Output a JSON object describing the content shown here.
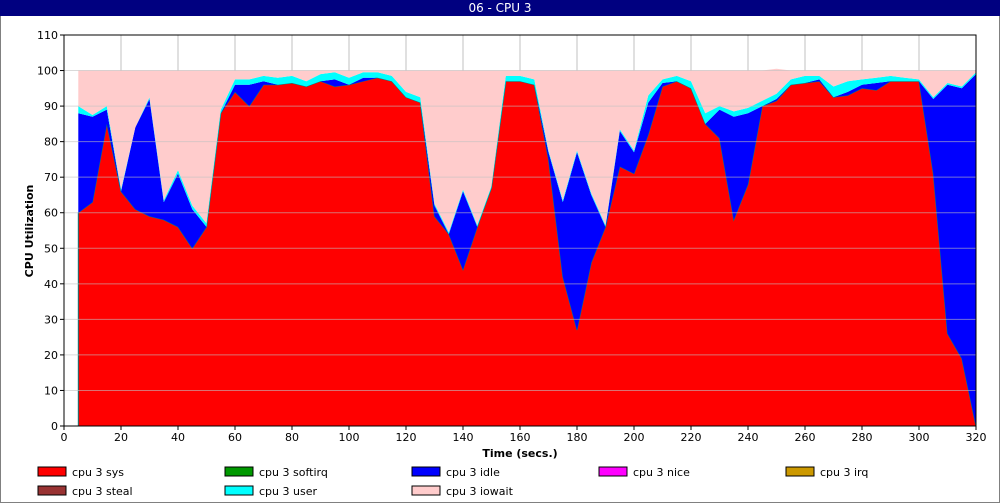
{
  "window": {
    "title": "06 - CPU 3"
  },
  "chart_data": {
    "type": "area",
    "title": "06 - CPU 3",
    "xlabel": "Time (secs.)",
    "ylabel": "CPU Utilization",
    "xlim": [
      0,
      320
    ],
    "ylim": [
      0,
      110
    ],
    "x_ticks": [
      0,
      20,
      40,
      60,
      80,
      100,
      120,
      140,
      160,
      180,
      200,
      220,
      240,
      260,
      280,
      300,
      320
    ],
    "y_ticks": [
      0,
      10,
      20,
      30,
      40,
      50,
      60,
      70,
      80,
      90,
      100,
      110
    ],
    "grid": true,
    "stacked": true,
    "x": [
      5,
      10,
      15,
      20,
      25,
      30,
      35,
      40,
      45,
      50,
      55,
      60,
      65,
      70,
      75,
      80,
      85,
      90,
      95,
      100,
      105,
      110,
      115,
      120,
      125,
      130,
      135,
      140,
      145,
      150,
      155,
      160,
      165,
      170,
      175,
      180,
      185,
      190,
      195,
      200,
      205,
      210,
      215,
      220,
      225,
      230,
      235,
      240,
      245,
      250,
      255,
      260,
      265,
      270,
      275,
      280,
      285,
      290,
      295,
      300,
      305,
      310,
      315,
      320
    ],
    "series": [
      {
        "name": "cpu 3 sys",
        "color": "#ff0000",
        "values": [
          60,
          63,
          85,
          66,
          61,
          59,
          58,
          56,
          50,
          56,
          88,
          94,
          90,
          96,
          96,
          96.5,
          95.5,
          97,
          95.5,
          96,
          97,
          98,
          97,
          92.5,
          91,
          59,
          54,
          44,
          56,
          67,
          97,
          97,
          96,
          75,
          42,
          27,
          46,
          56,
          73,
          71,
          82,
          95.5,
          97,
          95,
          85,
          81,
          58,
          68,
          90,
          91.5,
          96,
          96.5,
          97,
          92.5,
          93,
          95,
          94.5,
          97,
          97,
          97,
          71,
          26,
          19,
          0
        ]
      },
      {
        "name": "cpu 3 softirq",
        "color": "#009900",
        "values": [
          0,
          0,
          0,
          0,
          0,
          0,
          0,
          0,
          0,
          0,
          0,
          0,
          0,
          0,
          0,
          0,
          0,
          0,
          0,
          0,
          0,
          0,
          0,
          0,
          0,
          0,
          0,
          0,
          0,
          0,
          0,
          0,
          0,
          0,
          0,
          0,
          0,
          0,
          0,
          0,
          0,
          0,
          0,
          0,
          0,
          0,
          0,
          0,
          0,
          0,
          0,
          0,
          0,
          0,
          0,
          0,
          0,
          0,
          0,
          0,
          0,
          0,
          0,
          0
        ]
      },
      {
        "name": "cpu 3 idle",
        "color": "#0000ff",
        "values": [
          28,
          24,
          4,
          0,
          23,
          33,
          5,
          15,
          11,
          0,
          0,
          2,
          6,
          1,
          0,
          0,
          0,
          0,
          2,
          0,
          1,
          0,
          0,
          0,
          0,
          3,
          0,
          22,
          0,
          0,
          0,
          0,
          0,
          2,
          21,
          50,
          19,
          0,
          10,
          6,
          9,
          1,
          0,
          0,
          0,
          8,
          29,
          20,
          0,
          0.5,
          0,
          0,
          0.5,
          0,
          1,
          1,
          2,
          0,
          0,
          0,
          21,
          70,
          76,
          99
        ]
      },
      {
        "name": "cpu 3 nice",
        "color": "#ff00ff",
        "values": [
          0,
          0,
          0,
          0,
          0,
          0,
          0,
          0,
          0,
          0,
          0,
          0,
          0,
          0,
          0,
          0,
          0,
          0,
          0,
          0,
          0,
          0,
          0,
          0,
          0,
          0,
          0,
          0,
          0,
          0,
          0,
          0,
          0,
          0,
          0,
          0,
          0,
          0,
          0,
          0,
          0,
          0,
          0,
          0,
          0,
          0,
          0,
          0,
          0,
          0,
          0,
          0,
          0,
          0,
          0,
          0,
          0,
          0,
          0,
          0,
          0,
          0,
          0,
          0
        ]
      },
      {
        "name": "cpu 3 irq",
        "color": "#cc9900",
        "values": [
          0,
          0,
          0,
          0,
          0,
          0,
          0,
          0,
          0,
          0,
          0,
          0,
          0,
          0,
          0,
          0,
          0,
          0,
          0,
          0,
          0,
          0,
          0,
          0,
          0,
          0,
          0,
          0,
          0,
          0,
          0,
          0,
          0,
          0,
          0,
          0,
          0,
          0,
          0,
          0,
          0,
          0,
          0,
          0,
          0,
          0,
          0,
          0,
          0,
          0,
          0,
          0,
          0,
          0,
          0,
          0,
          0,
          0,
          0,
          0,
          0,
          0,
          0,
          0
        ]
      },
      {
        "name": "cpu 3 steal",
        "color": "#993333",
        "values": [
          0,
          0,
          0,
          0,
          0,
          0,
          0,
          0,
          0,
          0,
          0,
          0,
          0,
          0,
          0,
          0,
          0,
          0,
          0,
          0,
          0,
          0,
          0,
          0,
          0,
          0,
          0,
          0,
          0,
          0,
          0,
          0,
          0,
          0,
          0,
          0,
          0,
          0,
          0,
          0,
          0,
          0,
          0,
          0,
          0,
          0,
          0,
          0,
          0,
          0,
          0,
          0,
          0,
          0,
          0,
          0,
          0,
          0,
          0,
          0,
          0,
          0,
          0,
          0
        ]
      },
      {
        "name": "cpu 3 user",
        "color": "#00ffff",
        "values": [
          2,
          0.5,
          1,
          0.5,
          0,
          0.5,
          0.5,
          1,
          1,
          1,
          1,
          1.5,
          1.5,
          1.5,
          2,
          2,
          1.5,
          2,
          2,
          2,
          1.5,
          1.5,
          1.5,
          1.5,
          1.5,
          0.5,
          0.5,
          0.5,
          0.5,
          0.5,
          1.5,
          1.5,
          1.5,
          0.5,
          0.5,
          0.5,
          0.5,
          0.5,
          0.5,
          0.5,
          2,
          1,
          1.5,
          2,
          3,
          1,
          1.5,
          1.5,
          1.5,
          1.5,
          1.5,
          2,
          1,
          3,
          3,
          1.5,
          1.5,
          1.5,
          1,
          0.5,
          0.5,
          0.5,
          0.5,
          0.5
        ]
      },
      {
        "name": "cpu 3 iowait",
        "color": "#ffcccc",
        "values": [
          10,
          12.5,
          10,
          33.5,
          16,
          7.5,
          36.5,
          28,
          38,
          43,
          11,
          2.5,
          2.5,
          1.5,
          2,
          1.5,
          3,
          1,
          0.5,
          2,
          0.5,
          0.5,
          1.5,
          6,
          7.5,
          37.5,
          45.5,
          33.5,
          43.5,
          32.5,
          1.5,
          1.5,
          2.5,
          22.5,
          36.5,
          22.5,
          34.5,
          43.5,
          16.5,
          22.5,
          7,
          2.5,
          1.5,
          3,
          12,
          10,
          11.5,
          10.5,
          8.5,
          7,
          2.5,
          1.5,
          1.5,
          4.5,
          3,
          2.5,
          2,
          1.5,
          2,
          2.5,
          7.5,
          3.5,
          4.5,
          0.5
        ]
      }
    ],
    "legend": {
      "position": "bottom",
      "entries": [
        "cpu 3 sys",
        "cpu 3 softirq",
        "cpu 3 idle",
        "cpu 3 nice",
        "cpu 3 irq",
        "cpu 3 steal",
        "cpu 3 user",
        "cpu 3 iowait"
      ]
    }
  }
}
